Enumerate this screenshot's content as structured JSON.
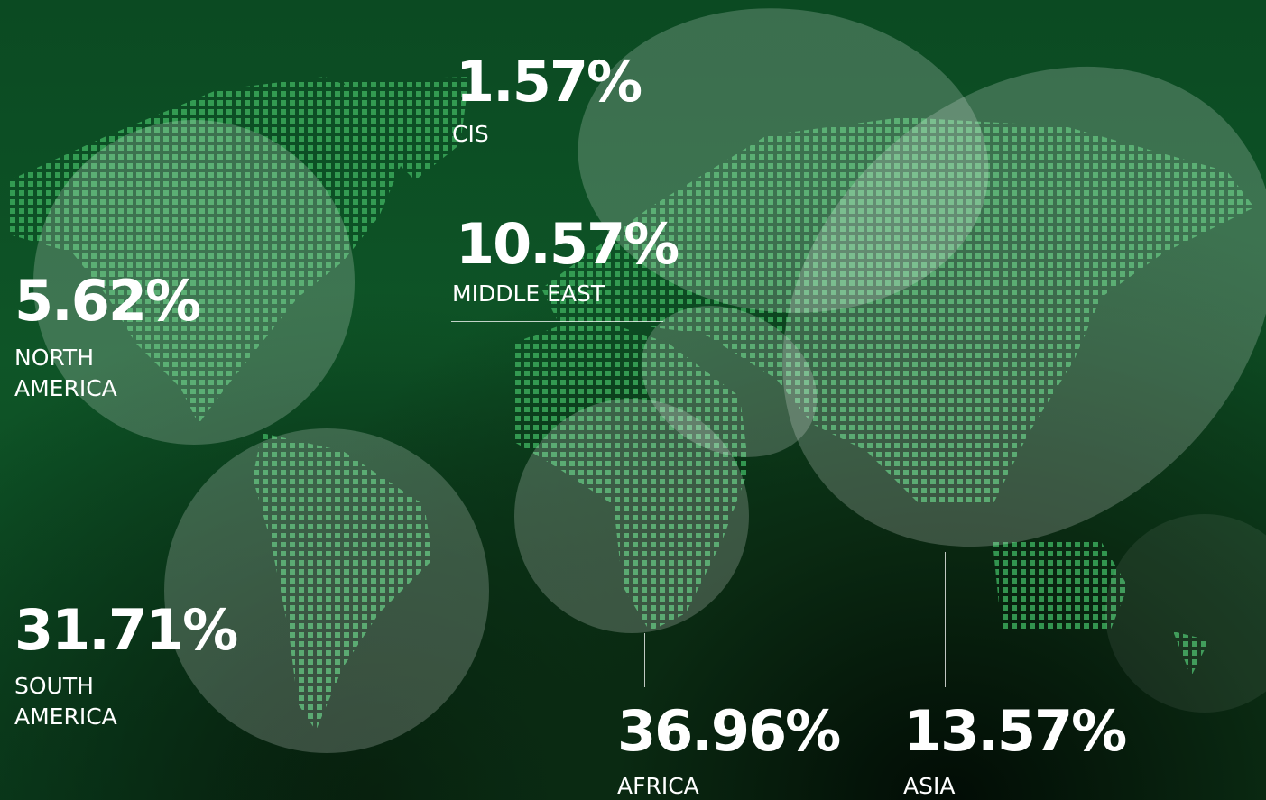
{
  "regions": [
    {
      "share": "1.57%",
      "name": "CIS"
    },
    {
      "share": "10.57%",
      "name": "MIDDLE EAST"
    },
    {
      "share": "5.62%",
      "name": "NORTH AMERICA"
    },
    {
      "share": "31.71%",
      "name": "SOUTH AMERICA"
    },
    {
      "share": "36.96%",
      "name": "AFRICA"
    },
    {
      "share": "13.57%",
      "name": "ASIA"
    }
  ]
}
